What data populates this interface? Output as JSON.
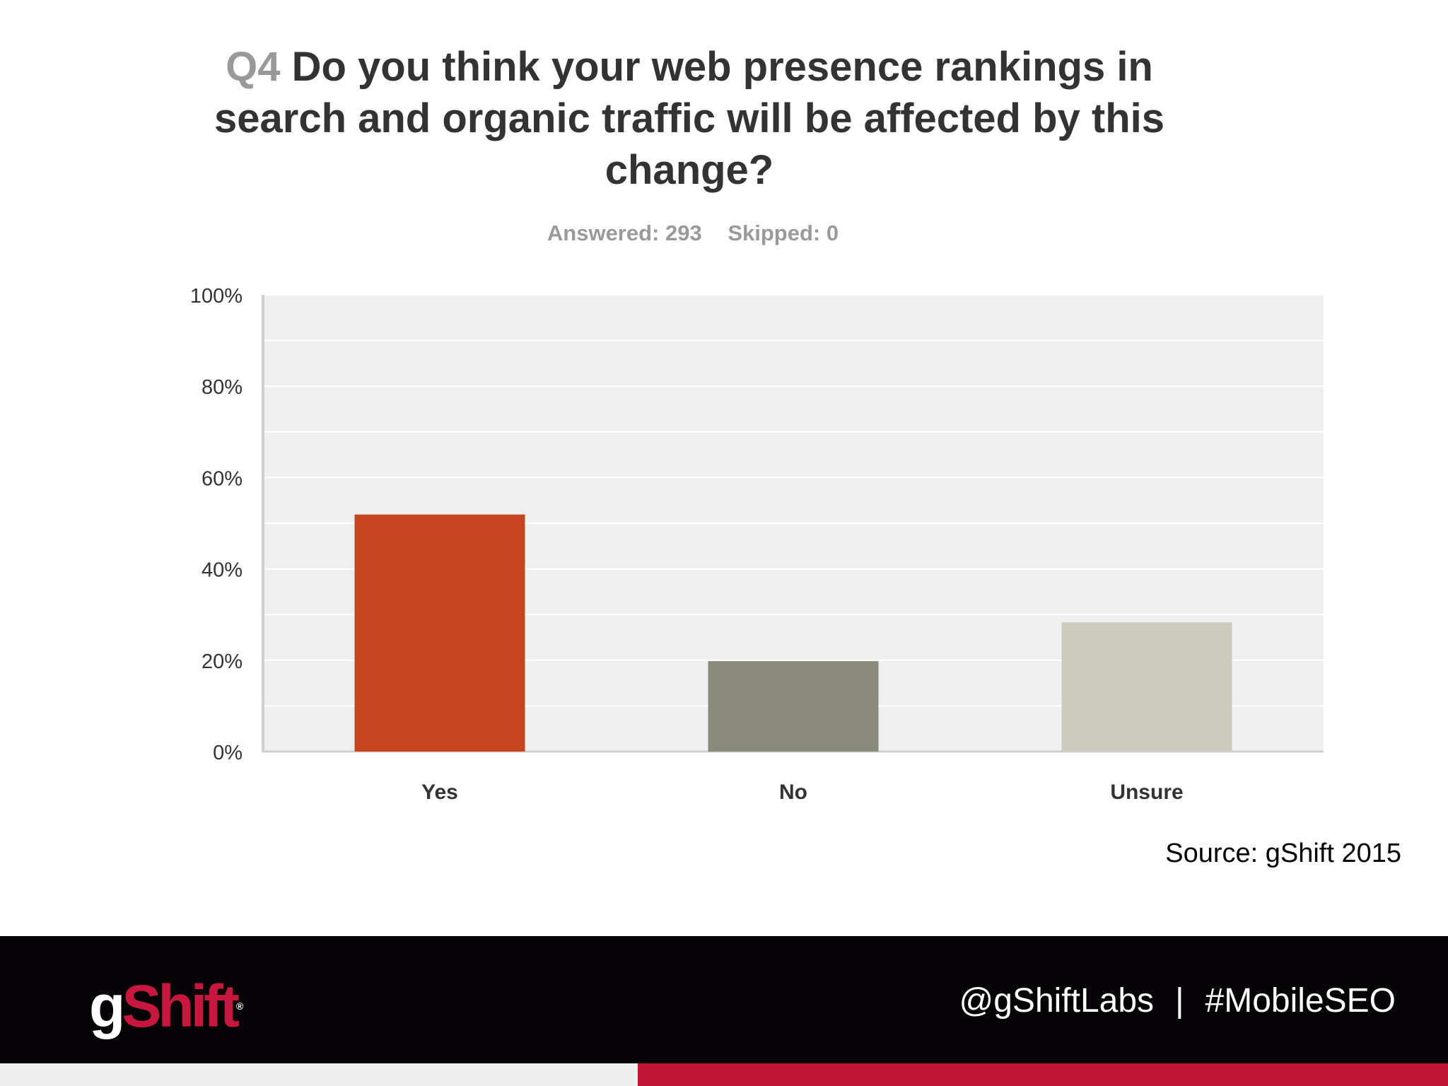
{
  "title": {
    "qnum": "Q4",
    "question": "Do you think your web presence rankings in search and organic traffic will be affected by this change?"
  },
  "meta": {
    "answered": "Answered: 293",
    "skipped": "Skipped: 0"
  },
  "chart_data": {
    "type": "bar",
    "categories": [
      "Yes",
      "No",
      "Unsure"
    ],
    "values": [
      51.9,
      19.8,
      28.3
    ],
    "unit": "%",
    "ylim": [
      0,
      100
    ],
    "yticks": [
      "0%",
      "20%",
      "40%",
      "60%",
      "80%",
      "100%"
    ],
    "ytick_values": [
      0,
      20,
      40,
      60,
      80,
      100
    ],
    "grid": true,
    "bar_colors": [
      "#c7451d",
      "#8a8b7a",
      "#cdcbbd"
    ],
    "plot_background": "#efefef",
    "title": "",
    "xlabel": "",
    "ylabel": ""
  },
  "source": "Source: gShift 2015",
  "footer": {
    "logo_g": "g",
    "logo_shift": "Shift",
    "logo_mark": "®",
    "handle": "@gShiftLabs",
    "separator": "|",
    "hashtag": "#MobileSEO"
  },
  "colors": {
    "brand_red": "#c01433",
    "footer_bg": "#050305"
  }
}
